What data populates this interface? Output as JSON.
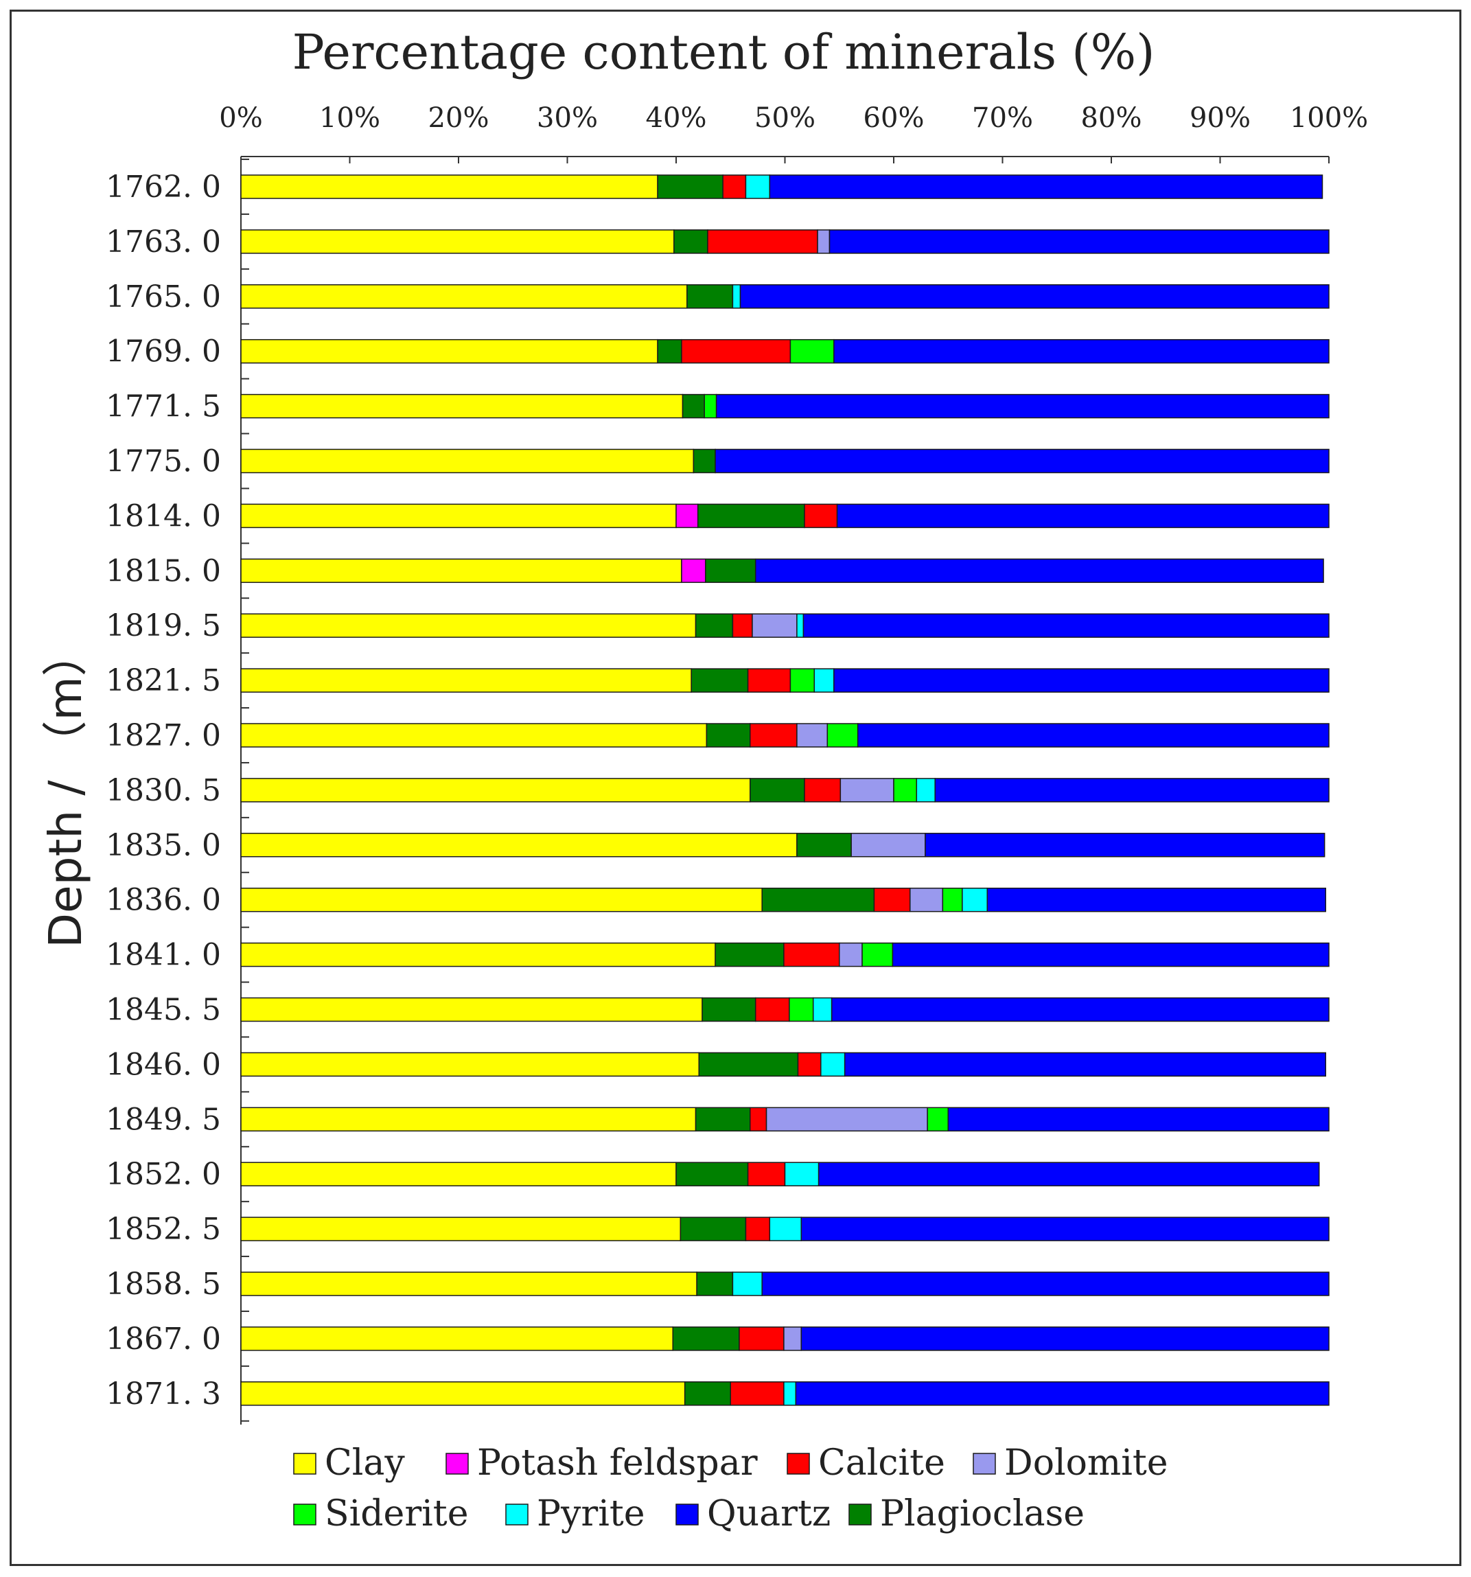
{
  "chart_data": {
    "type": "bar",
    "orientation": "horizontal",
    "stacked": true,
    "title": "Percentage content of minerals  (%)",
    "xlabel": "Percentage content of minerals  (%)",
    "ylabel": "Depth / （m）",
    "xlim": [
      0,
      100
    ],
    "x_ticks": [
      "0%",
      "10%",
      "20%",
      "30%",
      "40%",
      "50%",
      "60%",
      "70%",
      "80%",
      "90%",
      "100%"
    ],
    "categories": [
      "1762. 0",
      "1763. 0",
      "1765. 0",
      "1769. 0",
      "1771. 5",
      "1775. 0",
      "1814. 0",
      "1815. 0",
      "1819. 5",
      "1821. 5",
      "1827. 0",
      "1830. 5",
      "1835. 0",
      "1836. 0",
      "1841. 0",
      "1845. 5",
      "1846. 0",
      "1849. 5",
      "1852. 0",
      "1852. 5",
      "1858. 5",
      "1867. 0",
      "1871. 3"
    ],
    "series": [
      {
        "name": "Clay",
        "color": "#ffff00",
        "values": [
          38.3,
          39.8,
          41.0,
          38.3,
          40.6,
          41.6,
          40.0,
          40.5,
          41.8,
          41.4,
          42.8,
          46.8,
          51.1,
          47.9,
          43.6,
          42.4,
          42.1,
          41.8,
          40.0,
          40.4,
          41.9,
          39.7,
          40.8
        ]
      },
      {
        "name": "Potash feldspar",
        "color": "#ff00ff",
        "values": [
          0,
          0,
          0,
          0,
          0,
          0,
          2.0,
          2.2,
          0,
          0,
          0,
          0,
          0,
          0,
          0,
          0,
          0,
          0,
          0,
          0,
          0,
          0,
          0
        ]
      },
      {
        "name": "Plagioclase",
        "color": "#008000",
        "values": [
          6.0,
          3.1,
          4.2,
          2.2,
          2.0,
          2.0,
          9.8,
          4.6,
          3.4,
          5.2,
          4.0,
          5.0,
          5.0,
          10.3,
          6.3,
          4.9,
          9.1,
          5.0,
          6.6,
          6.0,
          3.3,
          6.1,
          4.2
        ]
      },
      {
        "name": "Calcite",
        "color": "#ff0000",
        "values": [
          2.1,
          10.1,
          0,
          10.0,
          0,
          0,
          3.0,
          0,
          1.8,
          3.9,
          4.3,
          3.3,
          0,
          3.3,
          5.1,
          3.1,
          2.1,
          1.5,
          3.4,
          2.2,
          0,
          4.1,
          4.9
        ]
      },
      {
        "name": "Dolomite",
        "color": "#9999ee",
        "values": [
          0,
          1.1,
          0,
          0,
          0,
          0,
          0,
          0,
          4.1,
          0,
          2.8,
          4.9,
          6.8,
          3.0,
          2.1,
          0,
          0,
          14.8,
          0,
          0,
          0,
          1.6,
          0
        ]
      },
      {
        "name": "Siderite",
        "color": "#00ff00",
        "values": [
          0,
          0,
          0,
          4.0,
          1.1,
          0,
          0,
          0,
          0,
          2.2,
          2.8,
          2.1,
          0,
          1.8,
          2.8,
          2.2,
          0,
          1.9,
          0,
          0,
          0,
          0,
          0
        ]
      },
      {
        "name": "Pyrite",
        "color": "#00ffff",
        "values": [
          2.2,
          0,
          0.7,
          0,
          0,
          0,
          0,
          0,
          0.6,
          1.8,
          0,
          1.7,
          0,
          2.3,
          0,
          1.7,
          2.2,
          0,
          3.1,
          2.9,
          2.7,
          0,
          1.1
        ]
      },
      {
        "name": "Quartz",
        "color": "#0000ff",
        "values": [
          50.8,
          45.9,
          54.1,
          45.5,
          56.3,
          56.4,
          45.2,
          52.2,
          48.3,
          45.5,
          43.3,
          36.2,
          36.7,
          31.1,
          40.1,
          45.7,
          44.2,
          35.0,
          46.0,
          48.5,
          52.1,
          48.5,
          49.0
        ]
      }
    ],
    "legend_order": [
      "Clay",
      "Potash feldspar",
      "Calcite",
      "Dolomite",
      "Siderite",
      "Pyrite",
      "Quartz",
      "Plagioclase"
    ],
    "legend_position": "bottom",
    "grid": false
  }
}
